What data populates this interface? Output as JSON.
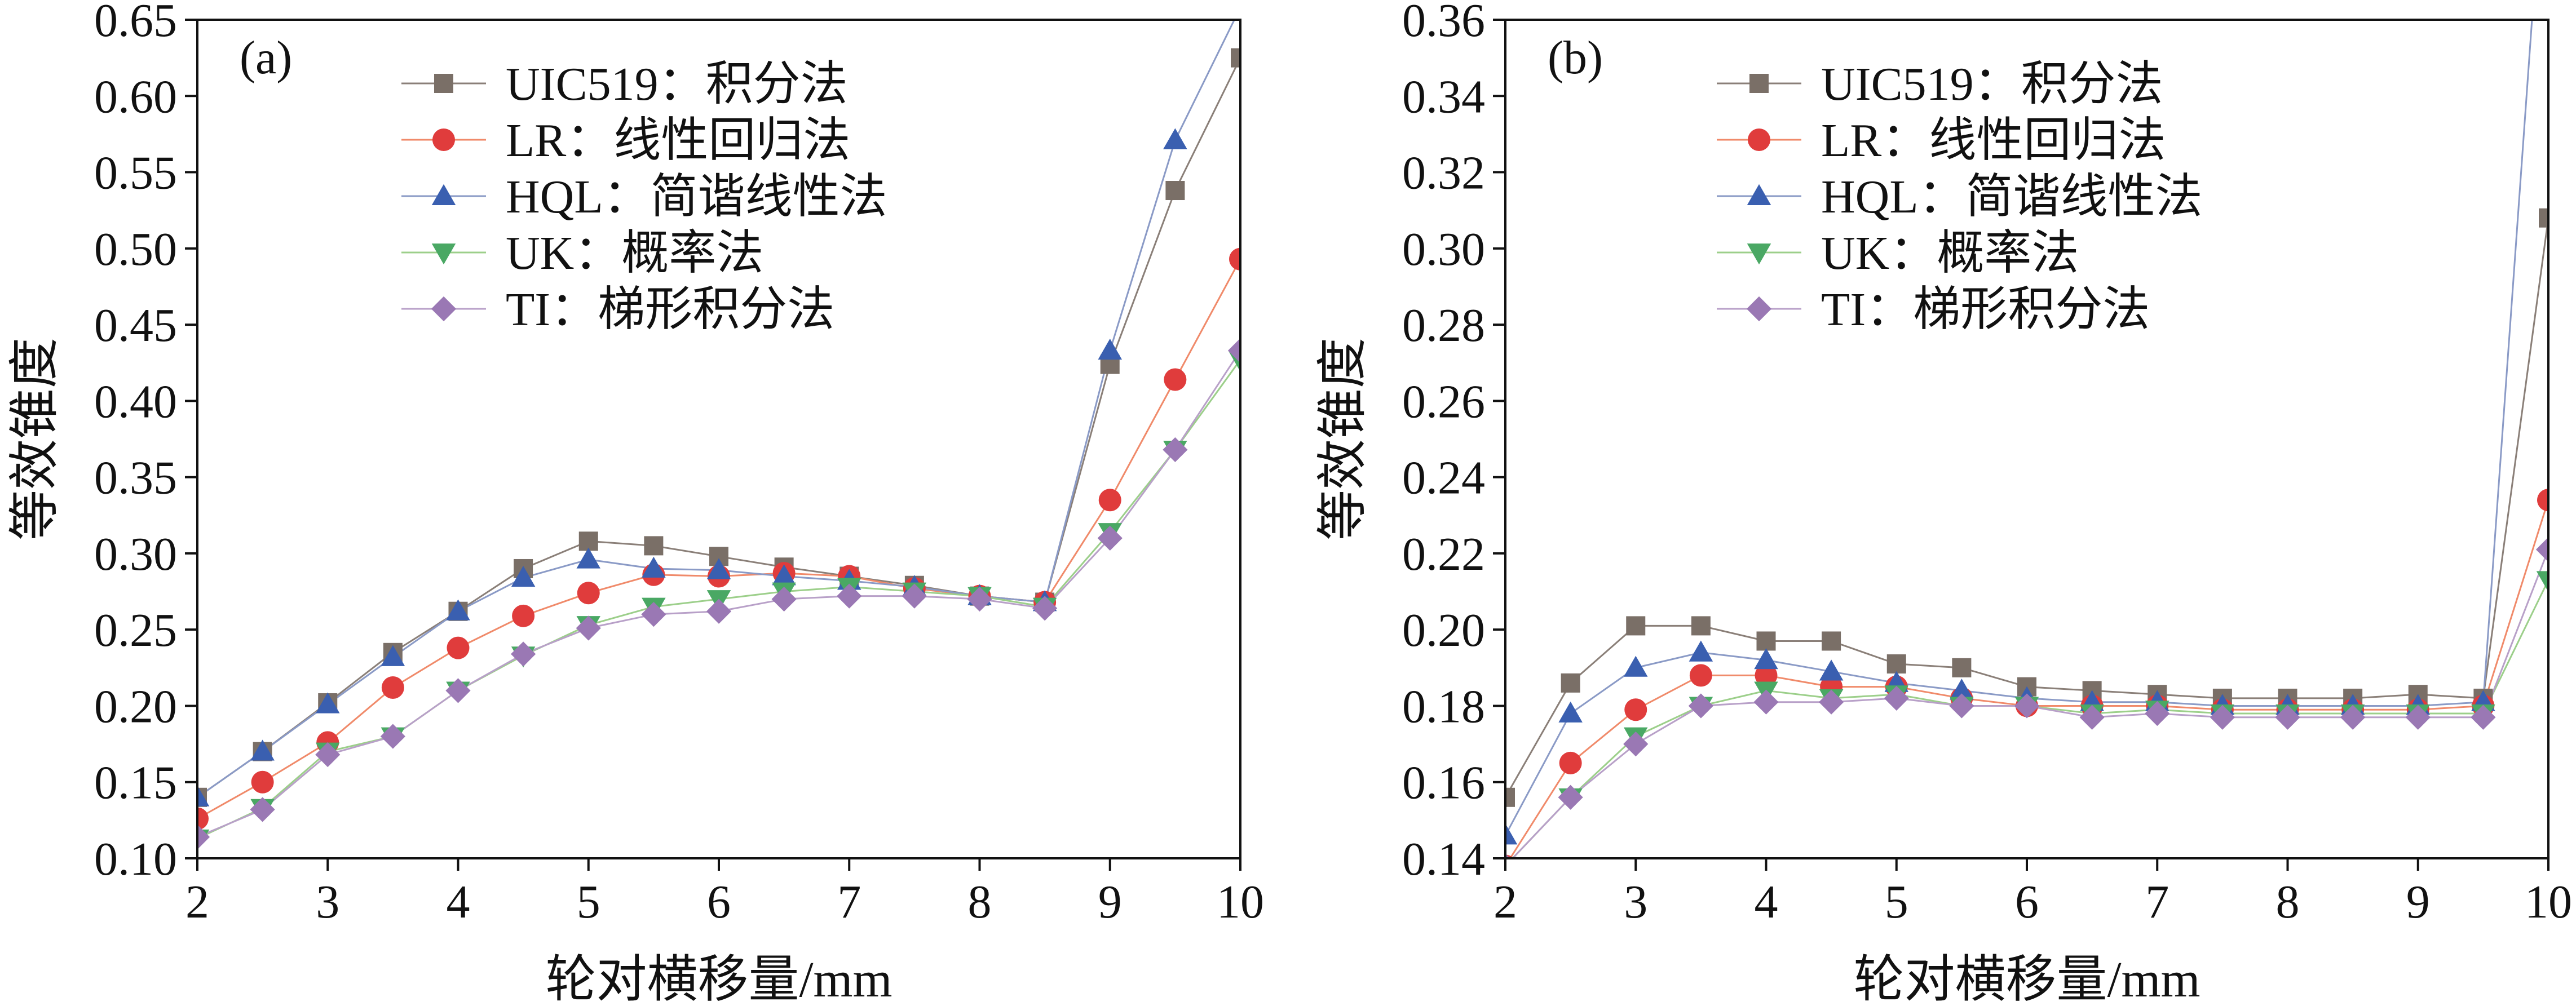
{
  "chart_data": [
    {
      "type": "line",
      "panel_label": "(a)",
      "xlabel": "轮对横移量/mm",
      "ylabel": "等效锥度",
      "xlim": [
        2,
        10
      ],
      "ylim": [
        0.1,
        0.65
      ],
      "x_ticks": [
        2,
        3,
        4,
        5,
        6,
        7,
        8,
        9,
        10
      ],
      "y_ticks": [
        0.1,
        0.15,
        0.2,
        0.25,
        0.3,
        0.35,
        0.4,
        0.45,
        0.5,
        0.55,
        0.6,
        0.65
      ],
      "x_tick_labels": [
        "2",
        "3",
        "4",
        "5",
        "6",
        "7",
        "8",
        "9",
        "10"
      ],
      "y_tick_labels": [
        "0.10",
        "0.15",
        "0.20",
        "0.25",
        "0.30",
        "0.35",
        "0.40",
        "0.45",
        "0.50",
        "0.55",
        "0.60",
        "0.65"
      ],
      "grid": false,
      "legend_position": "top-center",
      "x": [
        2,
        2.5,
        3,
        3.5,
        4,
        4.5,
        5,
        5.5,
        6,
        6.5,
        7,
        7.5,
        8,
        8.5,
        9,
        9.5,
        10
      ],
      "series": [
        {
          "name": "UIC519：积分法",
          "color": "#7a6f67",
          "line_color": "#8a7f78",
          "marker": "square",
          "values": [
            0.14,
            0.17,
            0.202,
            0.235,
            0.262,
            0.29,
            0.308,
            0.305,
            0.298,
            0.291,
            0.285,
            0.279,
            0.272,
            0.268,
            0.424,
            0.538,
            0.625
          ]
        },
        {
          "name": "LR：线性回归法",
          "color": "#e03c3c",
          "line_color": "#f08a6a",
          "marker": "circle",
          "values": [
            0.126,
            0.15,
            0.176,
            0.212,
            0.238,
            0.259,
            0.274,
            0.286,
            0.285,
            0.287,
            0.285,
            0.277,
            0.272,
            0.268,
            0.335,
            0.414,
            0.493
          ]
        },
        {
          "name": "HQL：简谐线性法",
          "color": "#3a5fb0",
          "line_color": "#8a9ac6",
          "marker": "triangle-up",
          "values": [
            0.14,
            0.17,
            0.201,
            0.232,
            0.262,
            0.284,
            0.296,
            0.29,
            0.289,
            0.285,
            0.282,
            0.278,
            0.272,
            0.268,
            0.433,
            0.571,
            0.658
          ]
        },
        {
          "name": "UK：概率法",
          "color": "#4aa864",
          "line_color": "#9ccf8a",
          "marker": "triangle-down",
          "values": [
            0.113,
            0.133,
            0.17,
            0.18,
            0.21,
            0.233,
            0.253,
            0.265,
            0.27,
            0.275,
            0.278,
            0.275,
            0.272,
            0.265,
            0.314,
            0.368,
            0.427
          ]
        },
        {
          "name": "TI：梯形积分法",
          "color": "#9a78b4",
          "line_color": "#b8a0c8",
          "marker": "diamond",
          "values": [
            0.114,
            0.132,
            0.168,
            0.18,
            0.21,
            0.234,
            0.251,
            0.26,
            0.262,
            0.27,
            0.272,
            0.272,
            0.27,
            0.264,
            0.31,
            0.368,
            0.433
          ]
        }
      ]
    },
    {
      "type": "line",
      "panel_label": "(b)",
      "xlabel": "轮对横移量/mm",
      "ylabel": "等效锥度",
      "xlim": [
        2,
        10
      ],
      "ylim": [
        0.14,
        0.36
      ],
      "x_ticks": [
        2,
        3,
        4,
        5,
        6,
        7,
        8,
        9,
        10
      ],
      "y_ticks": [
        0.14,
        0.16,
        0.18,
        0.2,
        0.22,
        0.24,
        0.26,
        0.28,
        0.3,
        0.32,
        0.34,
        0.36
      ],
      "x_tick_labels": [
        "2",
        "3",
        "4",
        "5",
        "6",
        "7",
        "8",
        "9",
        "10"
      ],
      "y_tick_labels": [
        "0.14",
        "0.16",
        "0.18",
        "0.20",
        "0.22",
        "0.24",
        "0.26",
        "0.28",
        "0.30",
        "0.32",
        "0.34",
        "0.36"
      ],
      "grid": false,
      "legend_position": "top-center",
      "x": [
        2,
        2.5,
        3,
        3.5,
        4,
        4.5,
        5,
        5.5,
        6,
        6.5,
        7,
        7.5,
        8,
        8.5,
        9,
        9.5,
        10
      ],
      "series": [
        {
          "name": "UIC519：积分法",
          "color": "#7a6f67",
          "line_color": "#8a7f78",
          "marker": "square",
          "values": [
            0.156,
            0.186,
            0.201,
            0.201,
            0.197,
            0.197,
            0.191,
            0.19,
            0.185,
            0.184,
            0.183,
            0.182,
            0.182,
            0.182,
            0.183,
            0.182,
            0.308
          ]
        },
        {
          "name": "LR：线性回归法",
          "color": "#e03c3c",
          "line_color": "#f08a6a",
          "marker": "circle",
          "values": [
            0.138,
            0.165,
            0.179,
            0.188,
            0.188,
            0.185,
            0.185,
            0.182,
            0.18,
            0.18,
            0.18,
            0.179,
            0.179,
            0.179,
            0.179,
            0.18,
            0.234
          ]
        },
        {
          "name": "HQL：简谐线性法",
          "color": "#3a5fb0",
          "line_color": "#8a9ac6",
          "marker": "triangle-up",
          "values": [
            0.146,
            0.178,
            0.19,
            0.194,
            0.192,
            0.189,
            0.186,
            0.184,
            0.182,
            0.181,
            0.181,
            0.18,
            0.18,
            0.18,
            0.18,
            0.181,
            0.42
          ]
        },
        {
          "name": "UK：概率法",
          "color": "#4aa864",
          "line_color": "#9ccf8a",
          "marker": "triangle-down",
          "values": [
            0.138,
            0.156,
            0.172,
            0.18,
            0.184,
            0.182,
            0.183,
            0.18,
            0.18,
            0.178,
            0.179,
            0.178,
            0.178,
            0.178,
            0.178,
            0.178,
            0.213
          ]
        },
        {
          "name": "TI：梯形积分法",
          "color": "#9a78b4",
          "line_color": "#b8a0c8",
          "marker": "diamond",
          "values": [
            0.138,
            0.156,
            0.17,
            0.18,
            0.181,
            0.181,
            0.182,
            0.18,
            0.18,
            0.177,
            0.178,
            0.177,
            0.177,
            0.177,
            0.177,
            0.177,
            0.221
          ]
        }
      ]
    }
  ]
}
